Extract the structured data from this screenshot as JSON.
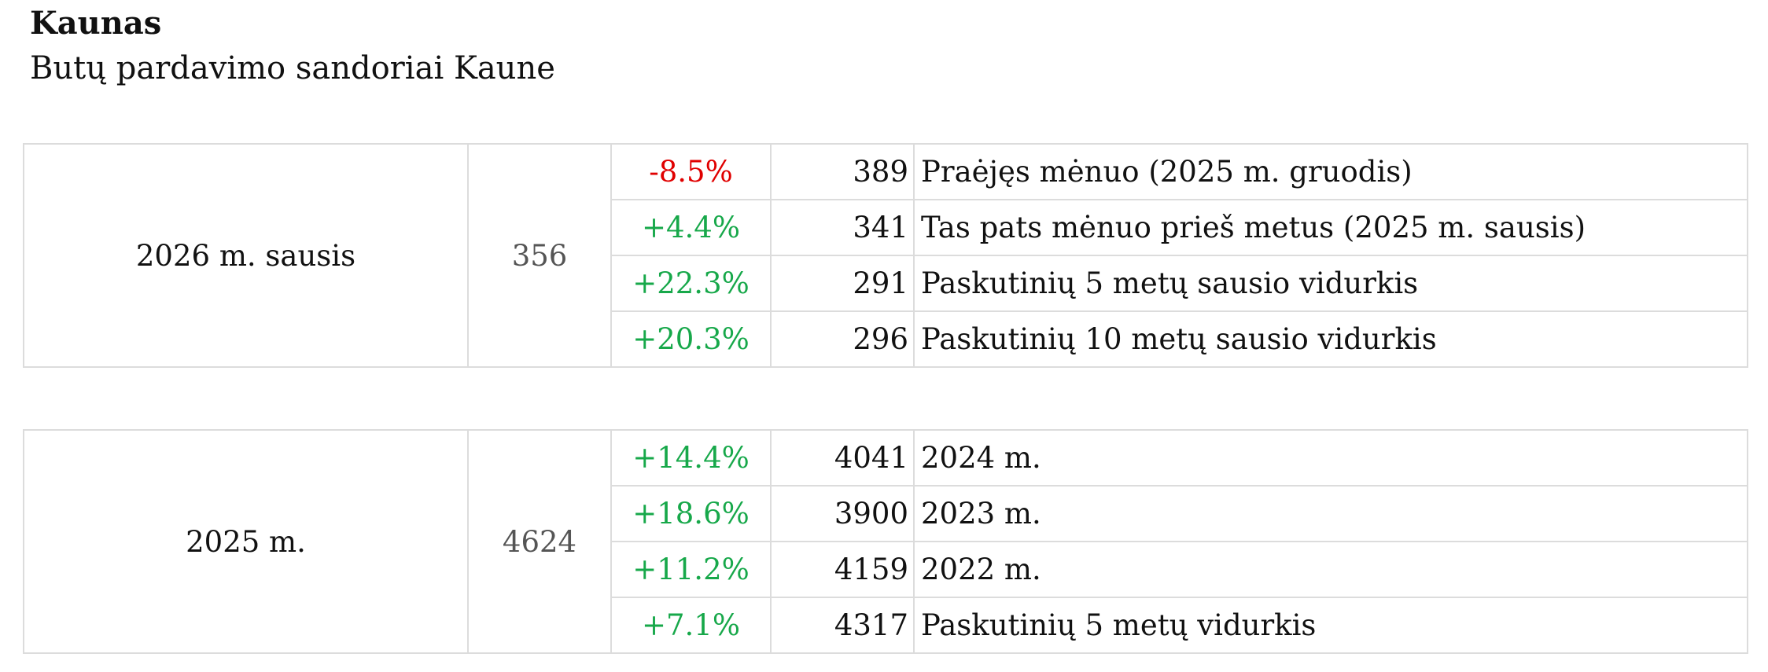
{
  "header": {
    "title": "Kaunas",
    "subtitle": "Butų pardavimo sandoriai Kaune"
  },
  "tables": [
    {
      "period": "2026 m. sausis",
      "value": "356",
      "rows": [
        {
          "change": "-8.5%",
          "count": "389",
          "label": "Praėjęs mėnuo (2025 m. gruodis)"
        },
        {
          "change": "+4.4%",
          "count": "341",
          "label": "Tas pats mėnuo prieš metus (2025 m. sausis)"
        },
        {
          "change": "+22.3%",
          "count": "291",
          "label": "Paskutinių 5 metų sausio vidurkis"
        },
        {
          "change": "+20.3%",
          "count": "296",
          "label": "Paskutinių 10 metų sausio vidurkis"
        }
      ]
    },
    {
      "period": "2025 m.",
      "value": "4624",
      "rows": [
        {
          "change": "+14.4%",
          "count": "4041",
          "label": "2024 m."
        },
        {
          "change": "+18.6%",
          "count": "3900",
          "label": "2023 m."
        },
        {
          "change": "+11.2%",
          "count": "4159",
          "label": "2022 m."
        },
        {
          "change": "+7.1%",
          "count": "4317",
          "label": "Paskutinių 5 metų vidurkis"
        }
      ]
    }
  ]
}
